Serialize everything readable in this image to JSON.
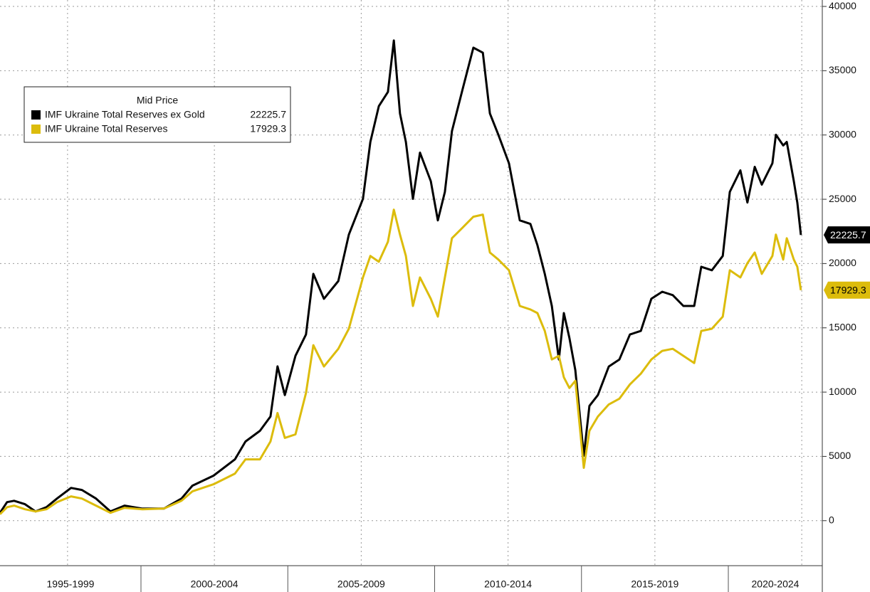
{
  "chart_data": {
    "type": "line",
    "legend_title": "Mid Price",
    "xlim": [
      1995.2,
      2023.2
    ],
    "xticks": [
      {
        "value": 1997.5,
        "label": "1995-1999"
      },
      {
        "value": 2002.5,
        "label": "2000-2004"
      },
      {
        "value": 2007.5,
        "label": "2005-2009"
      },
      {
        "value": 2012.5,
        "label": "2010-2014"
      },
      {
        "value": 2017.5,
        "label": "2015-2019"
      },
      {
        "value": 2022.5,
        "label": "2020-2024"
      }
    ],
    "ylim": [
      -3500,
      40500
    ],
    "yticks": [
      0,
      5000,
      10000,
      15000,
      20000,
      25000,
      30000,
      35000,
      40000
    ],
    "grid": true,
    "legend_position": "upper left",
    "x": [
      1995.2,
      1995.44,
      1995.68,
      1996.05,
      1996.41,
      1996.78,
      1997.14,
      1997.62,
      1997.99,
      1998.47,
      1998.96,
      1999.44,
      2000.05,
      2000.78,
      2001.38,
      2001.75,
      2002.47,
      2003.2,
      2003.56,
      2004.05,
      2004.41,
      2004.65,
      2004.9,
      2005.26,
      2005.62,
      2005.87,
      2006.23,
      2006.72,
      2007.08,
      2007.56,
      2007.81,
      2008.1,
      2008.41,
      2008.61,
      2008.82,
      2009.02,
      2009.26,
      2009.5,
      2009.87,
      2010.11,
      2010.35,
      2010.59,
      2010.96,
      2011.32,
      2011.64,
      2011.88,
      2012.17,
      2012.53,
      2012.9,
      2013.26,
      2013.5,
      2013.75,
      2013.99,
      2014.23,
      2014.4,
      2014.59,
      2014.79,
      2015.08,
      2015.27,
      2015.56,
      2015.93,
      2016.29,
      2016.65,
      2017.02,
      2017.38,
      2017.75,
      2018.11,
      2018.47,
      2018.84,
      2019.08,
      2019.44,
      2019.81,
      2020.05,
      2020.41,
      2020.65,
      2020.9,
      2021.14,
      2021.5,
      2021.62,
      2021.87,
      2021.99,
      2022.23,
      2022.35,
      2022.47
    ],
    "series": [
      {
        "name": "IMF Ukraine Total Reserves ex Gold",
        "color": "#000000",
        "values": [
          610,
          1440,
          1550,
          1280,
          720,
          1050,
          1720,
          2550,
          2390,
          1720,
          720,
          1170,
          940,
          940,
          1720,
          2720,
          3500,
          4770,
          6160,
          6990,
          8100,
          12000,
          9770,
          12820,
          14480,
          19200,
          17260,
          18640,
          22250,
          25030,
          29460,
          32240,
          33350,
          37350,
          31680,
          29460,
          25030,
          28630,
          26410,
          23360,
          25580,
          30300,
          33630,
          36790,
          36400,
          31680,
          30020,
          27800,
          23360,
          23080,
          21420,
          19200,
          16700,
          12540,
          16150,
          14210,
          11710,
          5050,
          8930,
          9770,
          11990,
          12540,
          14480,
          14760,
          17260,
          17810,
          17540,
          16700,
          16700,
          19750,
          19480,
          20590,
          25580,
          27250,
          24750,
          27520,
          26140,
          27800,
          30020,
          29190,
          29460,
          26410,
          24750,
          22225.7
        ]
      },
      {
        "name": "IMF Ukraine Total Reserves",
        "color": "#dcbc0c",
        "values": [
          500,
          1050,
          1170,
          890,
          720,
          890,
          1440,
          1890,
          1720,
          1170,
          610,
          1000,
          890,
          940,
          1550,
          2280,
          2830,
          3660,
          4770,
          4770,
          6160,
          8380,
          6440,
          6710,
          9930,
          13650,
          11990,
          13370,
          14930,
          18920,
          20590,
          20140,
          21700,
          24190,
          22250,
          20590,
          16700,
          18920,
          17260,
          15870,
          18920,
          21970,
          22810,
          23640,
          23810,
          20860,
          20310,
          19480,
          16700,
          16430,
          16150,
          14760,
          12540,
          12820,
          11150,
          10320,
          10880,
          4110,
          6990,
          8100,
          9040,
          9490,
          10600,
          11430,
          12540,
          13210,
          13370,
          12820,
          12260,
          14760,
          14930,
          15870,
          19480,
          18920,
          20030,
          20860,
          19200,
          20590,
          22250,
          20310,
          21970,
          20310,
          19750,
          17929.3
        ]
      }
    ]
  }
}
